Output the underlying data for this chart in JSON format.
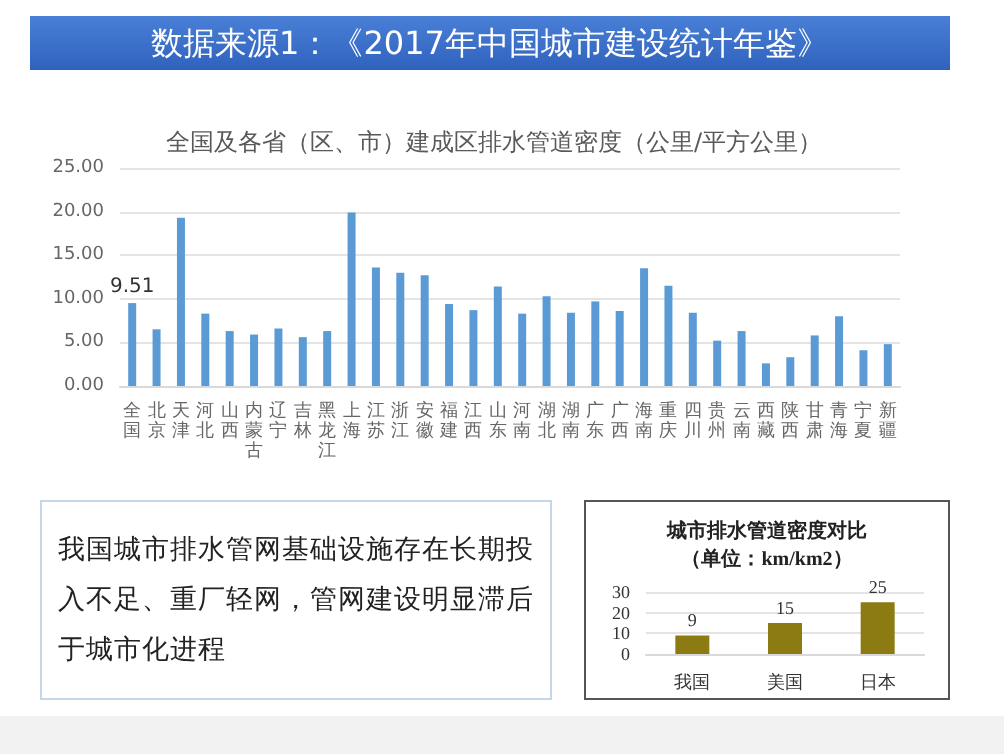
{
  "chart_data": [
    {
      "type": "bar",
      "title": "全国及各省（区、市）建成区排水管道密度（公里/平方公里）",
      "categories": [
        "全国",
        "北京",
        "天津",
        "河北",
        "山西",
        "内蒙古",
        "辽宁",
        "吉林",
        "黑龙江",
        "上海",
        "江苏",
        "浙江",
        "安徽",
        "福建",
        "江西",
        "山东",
        "河南",
        "湖北",
        "湖南",
        "广东",
        "广西",
        "海南",
        "重庆",
        "四川",
        "贵州",
        "云南",
        "西藏",
        "陕西",
        "甘肃",
        "青海",
        "宁夏",
        "新疆"
      ],
      "values": [
        9.51,
        6.5,
        19.3,
        8.3,
        6.3,
        5.9,
        6.6,
        5.6,
        6.3,
        19.9,
        13.6,
        13.0,
        12.7,
        9.4,
        8.7,
        11.4,
        8.3,
        10.3,
        8.4,
        9.7,
        8.6,
        13.5,
        11.5,
        8.4,
        5.2,
        6.3,
        2.6,
        3.3,
        5.8,
        8.0,
        4.1,
        4.8
      ],
      "value_labels": [
        "9.51",
        null,
        null,
        null,
        null,
        null,
        null,
        null,
        null,
        null,
        null,
        null,
        null,
        null,
        null,
        null,
        null,
        null,
        null,
        null,
        null,
        null,
        null,
        null,
        null,
        null,
        null,
        null,
        null,
        null,
        null,
        null
      ],
      "color": "#5b9bd5",
      "ylim": [
        0,
        25
      ],
      "yticks": [
        {
          "value": 0,
          "label": "0.00"
        },
        {
          "value": 5,
          "label": "5.00"
        },
        {
          "value": 10,
          "label": "10.00"
        },
        {
          "value": 15,
          "label": "15.00"
        },
        {
          "value": 20,
          "label": "20.00"
        },
        {
          "value": 25,
          "label": "25.00"
        }
      ],
      "grid": "y",
      "annotations": [
        "数据来源1：《2017年中国城市建设统计年鉴》",
        "我国城市排水管网基础设施存在长期投入不足、重厂轻网，管网建设明显滞后于城市化进程"
      ]
    },
    {
      "type": "bar",
      "title": "城市排水管道密度对比",
      "subtitle": "（单位：km/km2）",
      "categories": [
        "我国",
        "美国",
        "日本"
      ],
      "values": [
        9,
        15,
        25
      ],
      "color": "#8b7b12",
      "data_labels": true,
      "ylim": [
        0,
        30
      ],
      "yticks": [
        0,
        10,
        20,
        30
      ],
      "grid": "y"
    }
  ]
}
